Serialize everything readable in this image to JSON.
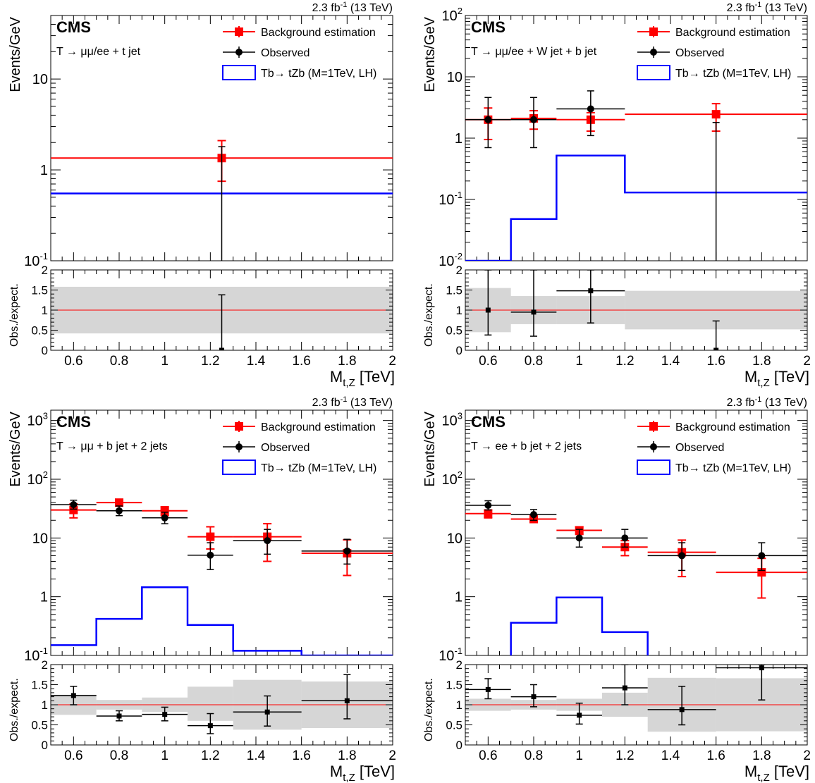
{
  "common": {
    "lumi_label": "2.3 fb",
    "lumi_sup": "-1",
    "lumi_energy": "(13 TeV)",
    "cms_label": "CMS",
    "ylabel": "Events/GeV",
    "ratio_ylabel": "Obs./expect.",
    "xlabel_main": "M",
    "xlabel_sub": "t,Z",
    "xlabel_unit": "[TeV]",
    "legend_background": "Background estimation",
    "legend_observed": "Observed",
    "legend_signal": "Tb→ tZb (M=1TeV, LH)",
    "x_tick_labels": [
      "0.6",
      "0.8",
      "1",
      "1.2",
      "1.4",
      "1.6",
      "1.8",
      "2"
    ],
    "ratio_tick_labels": [
      "0",
      "0.5",
      "1",
      "1.5",
      "2"
    ],
    "colors": {
      "background": "#ff0000",
      "observed": "#000000",
      "signal": "#0000ff",
      "band": "#bbbbbb"
    }
  },
  "chart_data": [
    {
      "type": "line",
      "title": "T → μμ/ee + t jet",
      "xlabel": "M_t,Z [TeV]",
      "ylabel": "Events/GeV",
      "xlim": [
        0.5,
        2.0
      ],
      "ylim": [
        0.1,
        50
      ],
      "log_y": true,
      "y_tick_labels": [
        {
          "value": 0.1,
          "base": "10",
          "exp": "-1"
        },
        {
          "value": 1,
          "base": "1",
          "exp": ""
        },
        {
          "value": 10,
          "base": "10",
          "exp": ""
        }
      ],
      "background": [
        {
          "x": 1.25,
          "xlo": 0.5,
          "xhi": 2.0,
          "y": 1.35,
          "elo": 0.6,
          "ehi": 0.75
        }
      ],
      "observed": [
        {
          "x": 1.25,
          "xlo": 1.25,
          "xhi": 1.25,
          "y": 0.001,
          "elo": 0,
          "ehi": 1.8
        }
      ],
      "signal": {
        "edges": [
          0.5,
          2.0
        ],
        "values": [
          0.55
        ]
      },
      "ratio": {
        "ylim": [
          0,
          2
        ],
        "points": [
          {
            "x": 1.25,
            "xlo": 1.25,
            "xhi": 1.25,
            "y": 0.0,
            "elo": 0,
            "ehi": 1.38
          }
        ],
        "band": [
          {
            "xlo": 0.5,
            "xhi": 2.0,
            "lo": 0.42,
            "hi": 1.58
          }
        ]
      }
    },
    {
      "type": "line",
      "title": "T → μμ/ee + W jet + b jet",
      "xlabel": "M_t,Z [TeV]",
      "ylabel": "Events/GeV",
      "xlim": [
        0.5,
        2.0
      ],
      "ylim": [
        0.01,
        100
      ],
      "log_y": true,
      "y_tick_labels": [
        {
          "value": 0.01,
          "base": "10",
          "exp": "-2"
        },
        {
          "value": 0.1,
          "base": "10",
          "exp": "-1"
        },
        {
          "value": 1,
          "base": "1",
          "exp": ""
        },
        {
          "value": 10,
          "base": "10",
          "exp": ""
        },
        {
          "value": 100,
          "base": "10",
          "exp": "2"
        }
      ],
      "background": [
        {
          "x": 0.6,
          "xlo": 0.5,
          "xhi": 0.7,
          "y": 2.0,
          "elo": 1.05,
          "ehi": 1.1
        },
        {
          "x": 0.8,
          "xlo": 0.7,
          "xhi": 0.9,
          "y": 2.1,
          "elo": 0.7,
          "ehi": 0.7
        },
        {
          "x": 1.05,
          "xlo": 0.9,
          "xhi": 1.2,
          "y": 2.0,
          "elo": 0.7,
          "ehi": 0.6
        },
        {
          "x": 1.6,
          "xlo": 1.2,
          "xhi": 2.0,
          "y": 2.45,
          "elo": 1.15,
          "ehi": 1.2
        }
      ],
      "observed": [
        {
          "x": 0.6,
          "xlo": 0.5,
          "xhi": 0.7,
          "y": 2.0,
          "elo": 1.3,
          "ehi": 2.6
        },
        {
          "x": 0.8,
          "xlo": 0.7,
          "xhi": 0.9,
          "y": 2.0,
          "elo": 1.3,
          "ehi": 2.6
        },
        {
          "x": 1.05,
          "xlo": 0.9,
          "xhi": 1.2,
          "y": 3.0,
          "elo": 1.9,
          "ehi": 2.9
        },
        {
          "x": 1.6,
          "xlo": 1.6,
          "xhi": 1.6,
          "y": 0.001,
          "elo": 0,
          "ehi": 1.8
        }
      ],
      "signal": {
        "edges": [
          0.5,
          0.7,
          0.9,
          1.2,
          2.0
        ],
        "values": [
          0.01,
          0.048,
          0.52,
          0.13
        ]
      },
      "ratio": {
        "ylim": [
          0,
          2
        ],
        "points": [
          {
            "x": 0.6,
            "xlo": 0.6,
            "xhi": 0.6,
            "y": 1.0,
            "elo": 0.62,
            "ehi": 1.0
          },
          {
            "x": 0.8,
            "xlo": 0.7,
            "xhi": 0.9,
            "y": 0.95,
            "elo": 0.6,
            "ehi": 1.05
          },
          {
            "x": 1.05,
            "xlo": 0.9,
            "xhi": 1.2,
            "y": 1.48,
            "elo": 0.8,
            "ehi": 0.52
          },
          {
            "x": 1.6,
            "xlo": 1.6,
            "xhi": 1.6,
            "y": 0.0,
            "elo": 0,
            "ehi": 0.73
          }
        ],
        "band": [
          {
            "xlo": 0.5,
            "xhi": 0.7,
            "lo": 0.45,
            "hi": 1.55
          },
          {
            "xlo": 0.7,
            "xhi": 0.9,
            "lo": 0.65,
            "hi": 1.35
          },
          {
            "xlo": 0.9,
            "xhi": 1.2,
            "lo": 0.65,
            "hi": 1.35
          },
          {
            "xlo": 1.2,
            "xhi": 2.0,
            "lo": 0.52,
            "hi": 1.48
          }
        ]
      }
    },
    {
      "type": "line",
      "title": "T → μμ + b jet + 2 jets",
      "xlabel": "M_t,Z [TeV]",
      "ylabel": "Events/GeV",
      "xlim": [
        0.5,
        2.0
      ],
      "ylim": [
        0.1,
        1500
      ],
      "log_y": true,
      "y_tick_labels": [
        {
          "value": 0.1,
          "base": "10",
          "exp": "-1"
        },
        {
          "value": 1,
          "base": "1",
          "exp": ""
        },
        {
          "value": 10,
          "base": "10",
          "exp": ""
        },
        {
          "value": 100,
          "base": "10",
          "exp": "2"
        },
        {
          "value": 1000,
          "base": "10",
          "exp": "3"
        }
      ],
      "background": [
        {
          "x": 0.6,
          "xlo": 0.5,
          "xhi": 0.7,
          "y": 30,
          "elo": 8,
          "ehi": 8
        },
        {
          "x": 0.8,
          "xlo": 0.7,
          "xhi": 0.9,
          "y": 40,
          "elo": 5,
          "ehi": 5
        },
        {
          "x": 1.0,
          "xlo": 0.9,
          "xhi": 1.1,
          "y": 29,
          "elo": 5,
          "ehi": 5
        },
        {
          "x": 1.2,
          "xlo": 1.1,
          "xhi": 1.3,
          "y": 10.5,
          "elo": 4,
          "ehi": 5
        },
        {
          "x": 1.45,
          "xlo": 1.3,
          "xhi": 1.6,
          "y": 10.5,
          "elo": 6.5,
          "ehi": 7
        },
        {
          "x": 1.8,
          "xlo": 1.6,
          "xhi": 2.0,
          "y": 5.5,
          "elo": 3.2,
          "ehi": 3.8
        }
      ],
      "observed": [
        {
          "x": 0.6,
          "xlo": 0.5,
          "xhi": 0.7,
          "y": 37,
          "elo": 6,
          "ehi": 7
        },
        {
          "x": 0.8,
          "xlo": 0.7,
          "xhi": 0.9,
          "y": 29,
          "elo": 5,
          "ehi": 6
        },
        {
          "x": 1.0,
          "xlo": 0.9,
          "xhi": 1.1,
          "y": 22,
          "elo": 4.5,
          "ehi": 5.5
        },
        {
          "x": 1.2,
          "xlo": 1.1,
          "xhi": 1.3,
          "y": 5.1,
          "elo": 2.2,
          "ehi": 3.2
        },
        {
          "x": 1.45,
          "xlo": 1.3,
          "xhi": 1.6,
          "y": 9.0,
          "elo": 3.7,
          "ehi": 5.0
        },
        {
          "x": 1.8,
          "xlo": 1.6,
          "xhi": 2.0,
          "y": 6.0,
          "elo": 2.4,
          "ehi": 3.5
        }
      ],
      "signal": {
        "edges": [
          0.5,
          0.7,
          0.9,
          1.1,
          1.3,
          1.6,
          2.0
        ],
        "values": [
          0.15,
          0.42,
          1.45,
          0.33,
          0.12,
          0.1
        ]
      },
      "ratio": {
        "ylim": [
          0,
          2
        ],
        "points": [
          {
            "x": 0.6,
            "xlo": 0.5,
            "xhi": 0.7,
            "y": 1.23,
            "elo": 0.23,
            "ehi": 0.23
          },
          {
            "x": 0.8,
            "xlo": 0.7,
            "xhi": 0.9,
            "y": 0.72,
            "elo": 0.12,
            "ehi": 0.13
          },
          {
            "x": 1.0,
            "xlo": 0.9,
            "xhi": 1.1,
            "y": 0.76,
            "elo": 0.16,
            "ehi": 0.18
          },
          {
            "x": 1.2,
            "xlo": 1.1,
            "xhi": 1.3,
            "y": 0.48,
            "elo": 0.2,
            "ehi": 0.3
          },
          {
            "x": 1.45,
            "xlo": 1.3,
            "xhi": 1.6,
            "y": 0.82,
            "elo": 0.35,
            "ehi": 0.4
          },
          {
            "x": 1.8,
            "xlo": 1.6,
            "xhi": 2.0,
            "y": 1.1,
            "elo": 0.45,
            "ehi": 0.65
          }
        ],
        "band": [
          {
            "xlo": 0.5,
            "xhi": 0.7,
            "lo": 0.75,
            "hi": 1.25
          },
          {
            "xlo": 0.7,
            "xhi": 0.9,
            "lo": 0.88,
            "hi": 1.12
          },
          {
            "xlo": 0.9,
            "xhi": 1.1,
            "lo": 0.82,
            "hi": 1.18
          },
          {
            "xlo": 1.1,
            "xhi": 1.3,
            "lo": 0.6,
            "hi": 1.45
          },
          {
            "xlo": 1.3,
            "xhi": 1.6,
            "lo": 0.38,
            "hi": 1.62
          },
          {
            "xlo": 1.6,
            "xhi": 2.0,
            "lo": 0.42,
            "hi": 1.58
          }
        ]
      }
    },
    {
      "type": "line",
      "title": "T → ee + b jet + 2 jets",
      "xlabel": "M_t,Z [TeV]",
      "ylabel": "Events/GeV",
      "xlim": [
        0.5,
        2.0
      ],
      "ylim": [
        0.1,
        1500
      ],
      "log_y": true,
      "y_tick_labels": [
        {
          "value": 0.1,
          "base": "10",
          "exp": "-1"
        },
        {
          "value": 1,
          "base": "1",
          "exp": ""
        },
        {
          "value": 10,
          "base": "10",
          "exp": ""
        },
        {
          "value": 100,
          "base": "10",
          "exp": "2"
        },
        {
          "value": 1000,
          "base": "10",
          "exp": "3"
        }
      ],
      "background": [
        {
          "x": 0.6,
          "xlo": 0.5,
          "xhi": 0.7,
          "y": 26,
          "elo": 4,
          "ehi": 4
        },
        {
          "x": 0.8,
          "xlo": 0.7,
          "xhi": 0.9,
          "y": 21,
          "elo": 2.5,
          "ehi": 2.5
        },
        {
          "x": 1.0,
          "xlo": 0.9,
          "xhi": 1.1,
          "y": 13.5,
          "elo": 2.0,
          "ehi": 2.0
        },
        {
          "x": 1.2,
          "xlo": 1.1,
          "xhi": 1.3,
          "y": 7.0,
          "elo": 2.0,
          "ehi": 2.0
        },
        {
          "x": 1.45,
          "xlo": 1.3,
          "xhi": 1.6,
          "y": 5.7,
          "elo": 3.5,
          "ehi": 3.5
        },
        {
          "x": 1.8,
          "xlo": 1.6,
          "xhi": 2.0,
          "y": 2.6,
          "elo": 1.65,
          "ehi": 1.9
        }
      ],
      "observed": [
        {
          "x": 0.6,
          "xlo": 0.5,
          "xhi": 0.7,
          "y": 36,
          "elo": 6,
          "ehi": 7
        },
        {
          "x": 0.8,
          "xlo": 0.7,
          "xhi": 0.9,
          "y": 25,
          "elo": 5,
          "ehi": 5.5
        },
        {
          "x": 1.0,
          "xlo": 0.9,
          "xhi": 1.1,
          "y": 10.0,
          "elo": 3,
          "ehi": 4
        },
        {
          "x": 1.2,
          "xlo": 1.1,
          "xhi": 1.3,
          "y": 10.0,
          "elo": 3,
          "ehi": 4
        },
        {
          "x": 1.45,
          "xlo": 1.3,
          "xhi": 1.6,
          "y": 5.0,
          "elo": 2.2,
          "ehi": 3.3
        },
        {
          "x": 1.8,
          "xlo": 1.6,
          "xhi": 2.0,
          "y": 5.0,
          "elo": 2.2,
          "ehi": 3.3
        }
      ],
      "signal": {
        "edges": [
          0.5,
          0.7,
          0.9,
          1.1,
          1.3,
          2.0
        ],
        "values": [
          0.09,
          0.36,
          0.97,
          0.25,
          0.09
        ]
      },
      "ratio": {
        "ylim": [
          0,
          2
        ],
        "points": [
          {
            "x": 0.6,
            "xlo": 0.5,
            "xhi": 0.7,
            "y": 1.38,
            "elo": 0.23,
            "ehi": 0.27
          },
          {
            "x": 0.8,
            "xlo": 0.7,
            "xhi": 0.9,
            "y": 1.2,
            "elo": 0.25,
            "ehi": 0.3
          },
          {
            "x": 1.0,
            "xlo": 0.9,
            "xhi": 1.1,
            "y": 0.74,
            "elo": 0.22,
            "ehi": 0.3
          },
          {
            "x": 1.2,
            "xlo": 1.1,
            "xhi": 1.3,
            "y": 1.42,
            "elo": 0.42,
            "ehi": 0.58
          },
          {
            "x": 1.45,
            "xlo": 1.3,
            "xhi": 1.6,
            "y": 0.88,
            "elo": 0.38,
            "ehi": 0.58
          },
          {
            "x": 1.8,
            "xlo": 1.6,
            "xhi": 2.0,
            "y": 1.92,
            "elo": 0.8,
            "ehi": 0.08
          }
        ],
        "band": [
          {
            "xlo": 0.5,
            "xhi": 0.7,
            "lo": 0.85,
            "hi": 1.15
          },
          {
            "xlo": 0.7,
            "xhi": 0.9,
            "lo": 0.88,
            "hi": 1.12
          },
          {
            "xlo": 0.9,
            "xhi": 1.1,
            "lo": 0.85,
            "hi": 1.15
          },
          {
            "xlo": 1.1,
            "xhi": 1.3,
            "lo": 0.7,
            "hi": 1.3
          },
          {
            "xlo": 1.3,
            "xhi": 1.6,
            "lo": 0.33,
            "hi": 1.67
          },
          {
            "xlo": 1.6,
            "xhi": 2.0,
            "lo": 0.34,
            "hi": 1.66
          }
        ]
      }
    }
  ]
}
